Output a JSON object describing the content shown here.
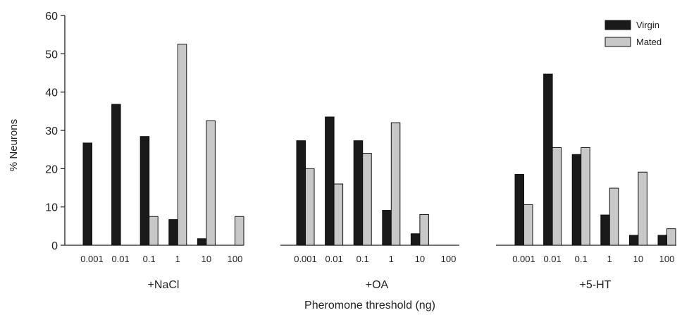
{
  "chart_data": {
    "type": "bar",
    "ylabel": "% Neurons",
    "xlabel": "Pheromone threshold (ng)",
    "ylim": [
      0,
      60
    ],
    "yticks": [
      0,
      10,
      20,
      30,
      40,
      50,
      60
    ],
    "categories": [
      "0.001",
      "0.01",
      "0.1",
      "1",
      "10",
      "100"
    ],
    "legend": {
      "position": "top-right",
      "entries": [
        {
          "name": "Virgin",
          "color": "#1a1a1a"
        },
        {
          "name": "Mated",
          "color": "#c8c8c8"
        }
      ]
    },
    "panels": [
      {
        "label": "+NaCl",
        "series": [
          {
            "name": "Virgin",
            "values": [
              26.7,
              36.8,
              28.4,
              6.7,
              1.7,
              0
            ]
          },
          {
            "name": "Mated",
            "values": [
              0,
              0,
              7.5,
              52.5,
              32.5,
              7.5
            ]
          }
        ]
      },
      {
        "label": "+OA",
        "series": [
          {
            "name": "Virgin",
            "values": [
              27.3,
              33.5,
              27.3,
              9.1,
              3.0,
              0
            ]
          },
          {
            "name": "Mated",
            "values": [
              20.0,
              16.0,
              24.0,
              32.0,
              8.0,
              0
            ]
          }
        ]
      },
      {
        "label": "+5-HT",
        "series": [
          {
            "name": "Virgin",
            "values": [
              18.5,
              44.7,
              23.7,
              7.9,
              2.6,
              2.6
            ]
          },
          {
            "name": "Mated",
            "values": [
              10.6,
              25.5,
              25.5,
              14.9,
              19.1,
              4.3
            ]
          }
        ]
      }
    ]
  }
}
